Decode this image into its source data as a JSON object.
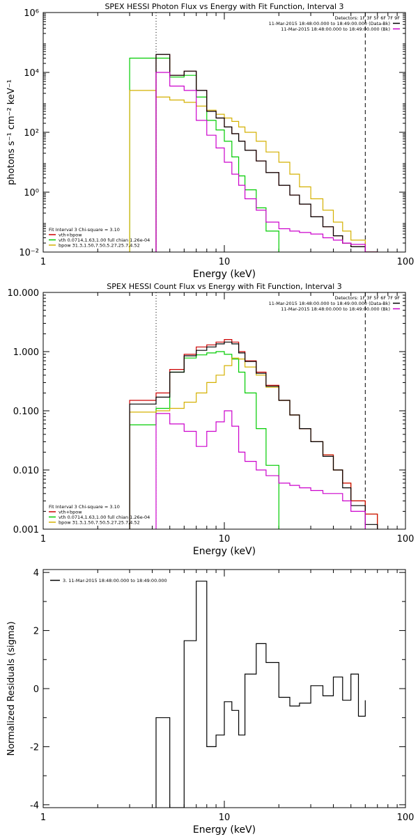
{
  "colors": {
    "background": "#ffffff",
    "axes": "#000000",
    "data_plus_bk": "#000000",
    "data_minus_bk": "#cc0000",
    "bk": "#cc00cc",
    "vth": "#00cc00",
    "bpow": "#d4b000",
    "total": "#cc0000"
  },
  "chart_data": [
    {
      "id": "photon",
      "type": "line",
      "title": "SPEX HESSI Photon Flux vs Energy with Fit Function, Interval 3",
      "xlabel": "Energy (keV)",
      "ylabel": "photons s⁻¹ cm⁻² keV⁻¹",
      "xscale": "log",
      "yscale": "log",
      "xlim": [
        1,
        100
      ],
      "ylim": [
        0.01,
        1000000
      ],
      "xticks": [
        1,
        10,
        100
      ],
      "xticklabels": [
        "1",
        "10",
        "100"
      ],
      "yticks": [
        0.01,
        1,
        100,
        10000,
        1000000
      ],
      "yticklabels": [
        "10⁻²",
        "10⁰",
        "10²",
        "10⁴",
        "10⁶"
      ],
      "vlines": [
        {
          "x": 4.2,
          "style": "dotted"
        },
        {
          "x": 60,
          "style": "dashed"
        }
      ],
      "legend_topright": {
        "header": "Detectors: 1F 3F 5F 6F 7F 9F",
        "entries": [
          {
            "label": "11-Mar-2015 18:48:00.000 to 18:49:00.000 (Data-Bk)",
            "color": "#000000"
          },
          {
            "label": "11-Mar-2015 18:48:00.000 to 18:49:00.000 (Bk)",
            "color": "#cc00cc"
          }
        ]
      },
      "legend_bottomleft": {
        "header": "Fit Interval 3    Chi-square = 3.10",
        "entries": [
          {
            "label": "vth+bpow",
            "color": "#cc0000"
          },
          {
            "label": "vth 0.0714,1.63,1.00  full chian 1.26e-04",
            "color": "#00cc00"
          },
          {
            "label": "bpow 31.3,1.50,7.50,5.27,25.7,4.52",
            "color": "#d4b000"
          }
        ]
      },
      "bin_edges": [
        3,
        4.2,
        5,
        6,
        7,
        8,
        9,
        10,
        11,
        12,
        13,
        15,
        17,
        20,
        23,
        26,
        30,
        35,
        40,
        45,
        50,
        60,
        70
      ],
      "series": [
        {
          "color": "#00cc00",
          "values": [
            30000,
            30000,
            7000,
            8000,
            1500,
            250,
            120,
            50,
            15,
            3.5,
            1.2,
            0.3,
            0.05,
            0.008,
            0.008,
            0.008,
            0.008,
            0.008,
            0.008,
            0.008,
            0.008,
            0.008
          ]
        },
        {
          "color": "#d4b000",
          "values": [
            2500,
            1500,
            1200,
            1000,
            750,
            550,
            400,
            300,
            230,
            150,
            100,
            50,
            22,
            10,
            4,
            1.5,
            0.6,
            0.25,
            0.1,
            0.05,
            0.025,
            0.01
          ]
        },
        {
          "color": "#cc0000",
          "values": [
            null,
            40000,
            8000,
            11000,
            2500,
            500,
            300,
            150,
            90,
            50,
            25,
            11,
            4.5,
            1.7,
            0.8,
            0.4,
            0.15,
            0.07,
            0.035,
            0.02,
            0.015,
            0.01
          ]
        },
        {
          "color": "#000000",
          "values": [
            null,
            40000,
            8000,
            11000,
            2500,
            500,
            300,
            150,
            90,
            50,
            25,
            11,
            4.5,
            1.7,
            0.8,
            0.4,
            0.15,
            0.07,
            0.035,
            0.02,
            0.015,
            0.01
          ]
        },
        {
          "color": "#cc00cc",
          "values": [
            null,
            10000,
            3500,
            2500,
            250,
            80,
            30,
            10,
            4,
            1.7,
            0.6,
            0.25,
            0.1,
            0.06,
            0.05,
            0.045,
            0.04,
            0.03,
            0.025,
            0.02,
            0.018,
            0.01
          ]
        }
      ]
    },
    {
      "id": "count",
      "type": "line",
      "title": "SPEX HESSI Count Flux vs Energy with Fit Function, Interval 3",
      "xlabel": "Energy (keV)",
      "ylabel": "",
      "xscale": "log",
      "yscale": "log",
      "xlim": [
        1,
        100
      ],
      "ylim": [
        0.001,
        10
      ],
      "xticks": [
        1,
        10,
        100
      ],
      "xticklabels": [
        "1",
        "10",
        "100"
      ],
      "yticks": [
        0.001,
        0.01,
        0.1,
        1,
        10
      ],
      "yticklabels": [
        "0.001",
        "0.010",
        "0.100",
        "1.000",
        "10.000"
      ],
      "vlines": [
        {
          "x": 4.2,
          "style": "dotted"
        },
        {
          "x": 60,
          "style": "dashed"
        }
      ],
      "legend_topright": {
        "header": "Detectors: 1F 3F 5F 6F 7F 9F",
        "entries": [
          {
            "label": "11-Mar-2015 18:48:00.000 to 18:49:00.000 (Data-Bk)",
            "color": "#000000"
          },
          {
            "label": "11-Mar-2015 18:48:00.000 to 18:49:00.000 (Bk)",
            "color": "#cc00cc"
          }
        ]
      },
      "legend_bottomleft": {
        "header": "Fit Interval 3    Chi-square = 3.10",
        "entries": [
          {
            "label": "vth+bpow",
            "color": "#cc0000"
          },
          {
            "label": "vth 0.0714,1.63,1.00  full chian 1.26e-04",
            "color": "#00cc00"
          },
          {
            "label": "bpow 31.3,1.50,7.50,5.27,25.7,4.52",
            "color": "#d4b000"
          }
        ]
      },
      "bin_edges": [
        3,
        4.2,
        5,
        6,
        7,
        8,
        9,
        10,
        11,
        12,
        13,
        15,
        17,
        20,
        23,
        26,
        30,
        35,
        40,
        45,
        50,
        60,
        70,
        80
      ],
      "series": [
        {
          "color": "#00cc00",
          "values": [
            0.058,
            0.11,
            0.45,
            0.78,
            0.88,
            0.95,
            1.0,
            0.9,
            0.75,
            0.45,
            0.2,
            0.05,
            0.012,
            0.0009,
            null,
            null,
            null,
            null,
            null,
            null,
            null,
            null,
            null
          ]
        },
        {
          "color": "#d4b000",
          "values": [
            0.095,
            0.1,
            0.11,
            0.14,
            0.2,
            0.3,
            0.4,
            0.58,
            0.78,
            0.75,
            0.55,
            0.4,
            0.25,
            0.15,
            0.085,
            0.05,
            0.03,
            0.018,
            0.01,
            0.006,
            0.003,
            0.0018,
            0.0009
          ]
        },
        {
          "color": "#cc0000",
          "values": [
            0.15,
            0.2,
            0.5,
            0.9,
            1.2,
            1.3,
            1.45,
            1.6,
            1.45,
            1.0,
            0.7,
            0.45,
            0.27,
            0.15,
            0.085,
            0.05,
            0.03,
            0.018,
            0.01,
            0.006,
            0.003,
            0.0018,
            0.0009
          ]
        },
        {
          "color": "#000000",
          "values": [
            0.13,
            0.17,
            0.45,
            0.85,
            1.05,
            1.2,
            1.35,
            1.45,
            1.35,
            0.95,
            0.68,
            0.43,
            0.26,
            0.15,
            0.085,
            0.05,
            0.03,
            0.017,
            0.01,
            0.005,
            0.0025,
            0.0012,
            null
          ]
        },
        {
          "color": "#cc00cc",
          "values": [
            null,
            0.09,
            0.06,
            0.045,
            0.025,
            0.045,
            0.065,
            0.1,
            0.055,
            0.02,
            0.014,
            0.01,
            0.008,
            0.006,
            0.0055,
            0.005,
            0.0045,
            0.004,
            0.004,
            0.003,
            0.002,
            null,
            null
          ]
        }
      ]
    },
    {
      "id": "residuals",
      "type": "line",
      "title": "",
      "xlabel": "Energy (keV)",
      "ylabel": "Normalized Residuals (sigma)",
      "xscale": "log",
      "yscale": "linear",
      "xlim": [
        1,
        100
      ],
      "ylim": [
        -4.1,
        4.1
      ],
      "xticks": [
        1,
        10,
        100
      ],
      "xticklabels": [
        "1",
        "10",
        "100"
      ],
      "yticks": [
        -4,
        -2,
        0,
        2,
        4
      ],
      "yticklabels": [
        "-4",
        "-2",
        "0",
        "2",
        "4"
      ],
      "legend_topleft": {
        "entries": [
          {
            "label": "3. 11-Mar-2015 18:48:00.000 to 18:49:00.000",
            "color": "#000000"
          }
        ]
      },
      "bin_edges": [
        4.2,
        5,
        6,
        7,
        8,
        9,
        10,
        11,
        12,
        13,
        15,
        17,
        20,
        23,
        26,
        30,
        35,
        40,
        45,
        50,
        55,
        60
      ],
      "series": [
        {
          "color": "#000000",
          "values": [
            -1.0,
            -4.1,
            1.65,
            3.7,
            -2.0,
            -1.6,
            -0.45,
            -0.75,
            -1.6,
            0.5,
            1.55,
            0.9,
            -0.3,
            -0.6,
            -0.5,
            0.1,
            -0.25,
            0.4,
            -0.4,
            0.5,
            -0.95,
            -0.4
          ]
        }
      ]
    }
  ]
}
